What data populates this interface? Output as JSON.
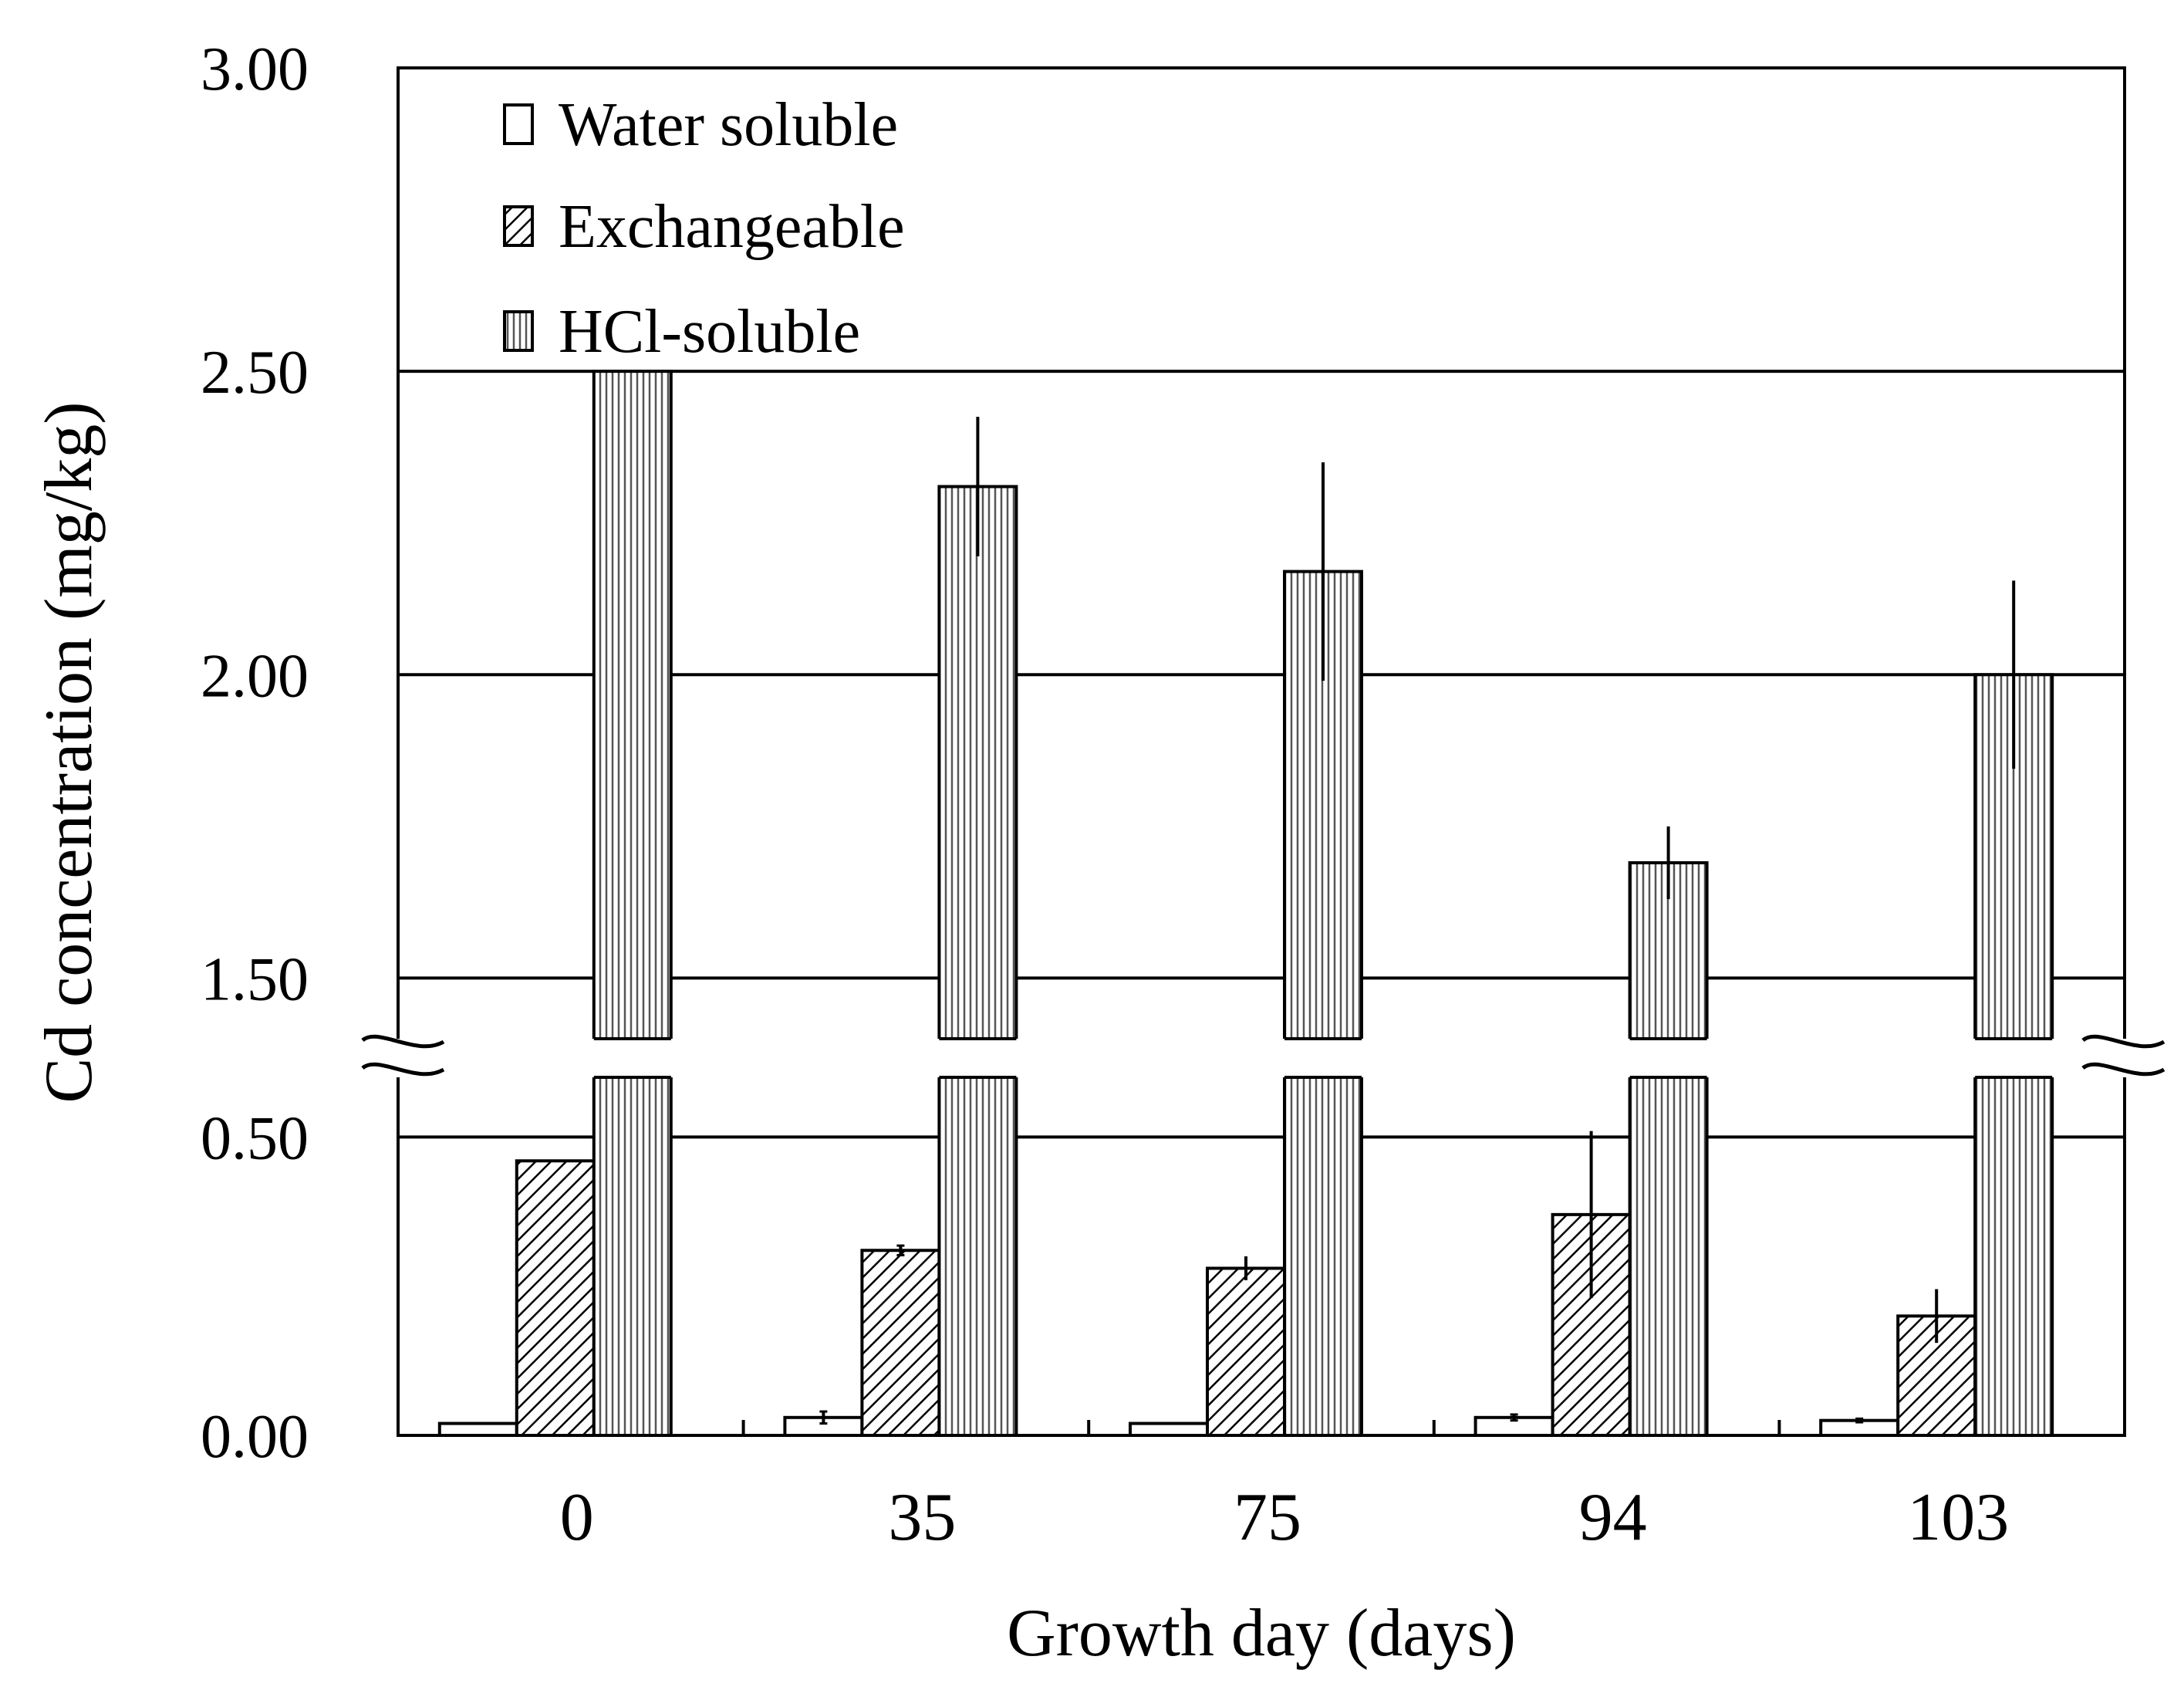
{
  "chart_data": {
    "type": "bar",
    "title": "",
    "xlabel": "Growth day (days)",
    "ylabel": "Cd concentration (mg/kg)",
    "categories": [
      "0",
      "35",
      "75",
      "94",
      "103"
    ],
    "y_ticks": [
      "0.00",
      "0.50",
      "1.50",
      "2.00",
      "2.50",
      "3.00"
    ],
    "axis_break": {
      "from": 0.6,
      "to": 1.4
    },
    "lower_segment_range": [
      0,
      0.6
    ],
    "upper_segment_range": [
      1.4,
      3.0
    ],
    "grid": true,
    "legend_position": "top-left",
    "series": [
      {
        "name": "Water soluble",
        "pattern": "white",
        "values": [
          0.02,
          0.03,
          0.02,
          0.03,
          0.025
        ],
        "errors": [
          0,
          0.01,
          0,
          0.005,
          0.003
        ]
      },
      {
        "name": "Exchangeable",
        "pattern": "diagonal-hatch",
        "values": [
          0.46,
          0.31,
          0.28,
          0.37,
          0.2
        ],
        "errors": [
          0,
          0.008,
          0.02,
          0.14,
          0.045
        ]
      },
      {
        "name": "HCl-soluble",
        "pattern": "vertical-hatch",
        "values": [
          2.5,
          2.31,
          2.17,
          1.69,
          2.0
        ],
        "errors": [
          0,
          0.115,
          0.18,
          0.06,
          0.155
        ]
      }
    ]
  },
  "colors": {
    "stroke": "#000000",
    "fill_white": "#ffffff",
    "hatch_line": "#000000",
    "background": "#ffffff"
  }
}
